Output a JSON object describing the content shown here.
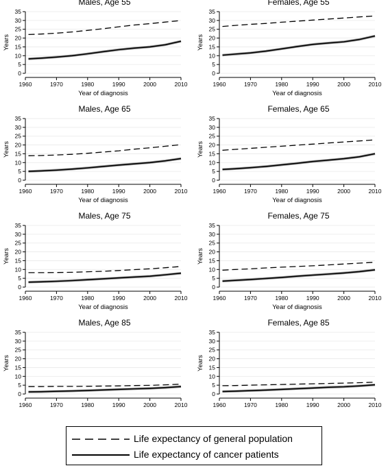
{
  "chart_data": [
    {
      "type": "line",
      "title": "Males, Age 55",
      "xlabel": "Year of diagnosis",
      "ylabel": "Years",
      "xlim": [
        1960,
        2010
      ],
      "ylim": [
        0,
        35
      ],
      "xticks": [
        1960,
        1970,
        1980,
        1990,
        2000,
        2010
      ],
      "yticks": [
        0,
        5,
        10,
        15,
        20,
        25,
        30,
        35
      ],
      "series": [
        {
          "name": "Life expectancy of general population",
          "x": [
            1961,
            1965,
            1970,
            1975,
            1980,
            1985,
            1990,
            1995,
            2000,
            2005,
            2010
          ],
          "y": [
            22.0,
            22.3,
            22.8,
            23.5,
            24.4,
            25.3,
            26.4,
            27.4,
            28.2,
            29.1,
            30.0
          ]
        },
        {
          "name": "Life expectancy of cancer patients",
          "x": [
            1961,
            1965,
            1970,
            1975,
            1980,
            1985,
            1990,
            1995,
            2000,
            2005,
            2010
          ],
          "y": [
            8.2,
            8.6,
            9.2,
            10.0,
            11.1,
            12.3,
            13.4,
            14.3,
            15.0,
            16.2,
            18.2
          ]
        }
      ]
    },
    {
      "type": "line",
      "title": "Females, Age 55",
      "xlabel": "Year of diagnosis",
      "ylabel": "Years",
      "xlim": [
        1960,
        2010
      ],
      "ylim": [
        0,
        35
      ],
      "xticks": [
        1960,
        1970,
        1980,
        1990,
        2000,
        2010
      ],
      "yticks": [
        0,
        5,
        10,
        15,
        20,
        25,
        30,
        35
      ],
      "series": [
        {
          "name": "Life expectancy of general population",
          "x": [
            1961,
            1965,
            1970,
            1975,
            1980,
            1985,
            1990,
            1995,
            2000,
            2005,
            2010
          ],
          "y": [
            26.6,
            27.2,
            27.8,
            28.3,
            29.0,
            29.6,
            30.2,
            30.8,
            31.4,
            32.0,
            32.6
          ]
        },
        {
          "name": "Life expectancy of cancer patients",
          "x": [
            1961,
            1965,
            1970,
            1975,
            1980,
            1985,
            1990,
            1995,
            2000,
            2005,
            2010
          ],
          "y": [
            10.3,
            10.9,
            11.6,
            12.6,
            13.9,
            15.2,
            16.4,
            17.2,
            17.9,
            19.2,
            21.2
          ]
        }
      ]
    },
    {
      "type": "line",
      "title": "Males, Age 65",
      "xlabel": "Year of diagnosis",
      "ylabel": "Years",
      "xlim": [
        1960,
        2010
      ],
      "ylim": [
        0,
        35
      ],
      "xticks": [
        1960,
        1970,
        1980,
        1990,
        2000,
        2010
      ],
      "yticks": [
        0,
        5,
        10,
        15,
        20,
        25,
        30,
        35
      ],
      "series": [
        {
          "name": "Life expectancy of general population",
          "x": [
            1961,
            1965,
            1970,
            1975,
            1980,
            1985,
            1990,
            1995,
            2000,
            2005,
            2010
          ],
          "y": [
            13.9,
            14.0,
            14.3,
            14.7,
            15.3,
            16.0,
            16.7,
            17.6,
            18.4,
            19.3,
            20.2
          ]
        },
        {
          "name": "Life expectancy of cancer patients",
          "x": [
            1961,
            1965,
            1970,
            1975,
            1980,
            1985,
            1990,
            1995,
            2000,
            2005,
            2010
          ],
          "y": [
            5.0,
            5.3,
            5.7,
            6.3,
            7.0,
            7.8,
            8.6,
            9.3,
            10.0,
            11.0,
            12.3
          ]
        }
      ]
    },
    {
      "type": "line",
      "title": "Females, Age 65",
      "xlabel": "Year of diagnosis",
      "ylabel": "Years",
      "xlim": [
        1960,
        2010
      ],
      "ylim": [
        0,
        35
      ],
      "xticks": [
        1960,
        1970,
        1980,
        1990,
        2000,
        2010
      ],
      "yticks": [
        0,
        5,
        10,
        15,
        20,
        25,
        30,
        35
      ],
      "series": [
        {
          "name": "Life expectancy of general population",
          "x": [
            1961,
            1965,
            1970,
            1975,
            1980,
            1985,
            1990,
            1995,
            2000,
            2005,
            2010
          ],
          "y": [
            17.0,
            17.5,
            18.1,
            18.7,
            19.3,
            19.9,
            20.5,
            21.1,
            21.7,
            22.3,
            22.9
          ]
        },
        {
          "name": "Life expectancy of cancer patients",
          "x": [
            1961,
            1965,
            1970,
            1975,
            1980,
            1985,
            1990,
            1995,
            2000,
            2005,
            2010
          ],
          "y": [
            6.1,
            6.5,
            7.1,
            7.8,
            8.7,
            9.6,
            10.6,
            11.4,
            12.2,
            13.3,
            15.0
          ]
        }
      ]
    },
    {
      "type": "line",
      "title": "Males, Age 75",
      "xlabel": "Year of diagnosis",
      "ylabel": "Years",
      "xlim": [
        1960,
        2010
      ],
      "ylim": [
        0,
        35
      ],
      "xticks": [
        1960,
        1970,
        1980,
        1990,
        2000,
        2010
      ],
      "yticks": [
        0,
        5,
        10,
        15,
        20,
        25,
        30,
        35
      ],
      "series": [
        {
          "name": "Life expectancy of general population",
          "x": [
            1961,
            1965,
            1970,
            1975,
            1980,
            1985,
            1990,
            1995,
            2000,
            2005,
            2010
          ],
          "y": [
            8.2,
            8.2,
            8.3,
            8.4,
            8.7,
            9.0,
            9.4,
            9.9,
            10.4,
            11.0,
            11.7
          ]
        },
        {
          "name": "Life expectancy of cancer patients",
          "x": [
            1961,
            1965,
            1970,
            1975,
            1980,
            1985,
            1990,
            1995,
            2000,
            2005,
            2010
          ],
          "y": [
            2.8,
            3.0,
            3.3,
            3.7,
            4.2,
            4.7,
            5.2,
            5.7,
            6.2,
            7.0,
            7.9
          ]
        }
      ]
    },
    {
      "type": "line",
      "title": "Females, Age 75",
      "xlabel": "Year of diagnosis",
      "ylabel": "Years",
      "xlim": [
        1960,
        2010
      ],
      "ylim": [
        0,
        35
      ],
      "xticks": [
        1960,
        1970,
        1980,
        1990,
        2000,
        2010
      ],
      "yticks": [
        0,
        5,
        10,
        15,
        20,
        25,
        30,
        35
      ],
      "series": [
        {
          "name": "Life expectancy of general population",
          "x": [
            1961,
            1965,
            1970,
            1975,
            1980,
            1985,
            1990,
            1995,
            2000,
            2005,
            2010
          ],
          "y": [
            9.6,
            10.0,
            10.4,
            10.9,
            11.3,
            11.7,
            12.1,
            12.6,
            13.1,
            13.6,
            14.1
          ]
        },
        {
          "name": "Life expectancy of cancer patients",
          "x": [
            1961,
            1965,
            1970,
            1975,
            1980,
            1985,
            1990,
            1995,
            2000,
            2005,
            2010
          ],
          "y": [
            3.4,
            3.8,
            4.3,
            4.9,
            5.5,
            6.2,
            6.8,
            7.4,
            8.0,
            8.8,
            9.8
          ]
        }
      ]
    },
    {
      "type": "line",
      "title": "Males, Age 85",
      "xlabel": "Year of diagnosis",
      "ylabel": "Years",
      "xlim": [
        1960,
        2010
      ],
      "ylim": [
        0,
        35
      ],
      "xticks": [
        1960,
        1970,
        1980,
        1990,
        2000,
        2010
      ],
      "yticks": [
        0,
        5,
        10,
        15,
        20,
        25,
        30,
        35
      ],
      "series": [
        {
          "name": "Life expectancy of general population",
          "x": [
            1961,
            1965,
            1970,
            1975,
            1980,
            1985,
            1990,
            1995,
            2000,
            2005,
            2010
          ],
          "y": [
            4.2,
            4.2,
            4.3,
            4.3,
            4.4,
            4.5,
            4.6,
            4.8,
            4.9,
            5.2,
            5.6
          ]
        },
        {
          "name": "Life expectancy of cancer patients",
          "x": [
            1961,
            1965,
            1970,
            1975,
            1980,
            1985,
            1990,
            1995,
            2000,
            2005,
            2010
          ],
          "y": [
            1.2,
            1.3,
            1.5,
            1.7,
            2.0,
            2.3,
            2.6,
            2.9,
            3.2,
            3.6,
            4.2
          ]
        }
      ]
    },
    {
      "type": "line",
      "title": "Females, Age 85",
      "xlabel": "Year of diagnosis",
      "ylabel": "Years",
      "xlim": [
        1960,
        2010
      ],
      "ylim": [
        0,
        35
      ],
      "xticks": [
        1960,
        1970,
        1980,
        1990,
        2000,
        2010
      ],
      "yticks": [
        0,
        5,
        10,
        15,
        20,
        25,
        30,
        35
      ],
      "series": [
        {
          "name": "Life expectancy of general population",
          "x": [
            1961,
            1965,
            1970,
            1975,
            1980,
            1985,
            1990,
            1995,
            2000,
            2005,
            2010
          ],
          "y": [
            4.7,
            4.8,
            5.0,
            5.2,
            5.4,
            5.6,
            5.8,
            6.0,
            6.2,
            6.4,
            6.7
          ]
        },
        {
          "name": "Life expectancy of cancer patients",
          "x": [
            1961,
            1965,
            1970,
            1975,
            1980,
            1985,
            1990,
            1995,
            2000,
            2005,
            2010
          ],
          "y": [
            1.4,
            1.6,
            1.9,
            2.2,
            2.6,
            3.0,
            3.4,
            3.8,
            4.1,
            4.6,
            5.2
          ]
        }
      ]
    }
  ],
  "legend": {
    "general_label": "Life expectancy of general population",
    "cancer_label": "Life expectancy of cancer patients"
  },
  "colors": {
    "line": "#000000",
    "band": "#9a9a9a",
    "axis": "#000000",
    "grid": "#e8e8e8"
  }
}
